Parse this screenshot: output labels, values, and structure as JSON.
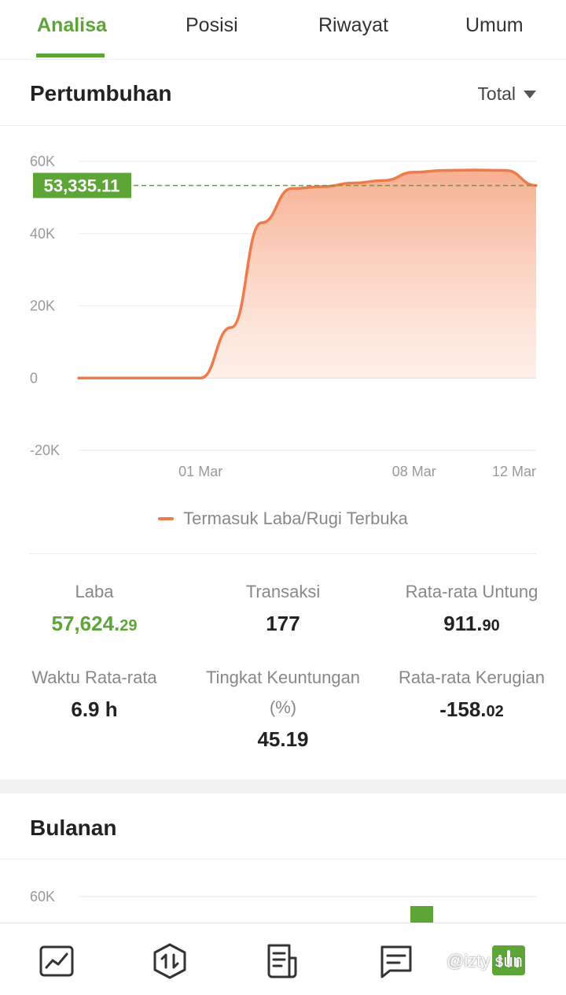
{
  "tabs": [
    {
      "label": "Analisa",
      "active": true
    },
    {
      "label": "Posisi",
      "active": false
    },
    {
      "label": "Riwayat",
      "active": false
    },
    {
      "label": "Umum",
      "active": false
    }
  ],
  "growth": {
    "title": "Pertumbuhan",
    "filter": "Total",
    "current_value_label": "53,335.11",
    "legend": "Termasuk Laba/Rugi Terbuka"
  },
  "chart_data": {
    "type": "area",
    "title": "",
    "xlabel": "",
    "ylabel": "",
    "x_tick_labels": [
      "01 Mar",
      "08 Mar",
      "12 Mar"
    ],
    "y_tick_labels": [
      "60K",
      "40K",
      "20K",
      "0",
      "-20K"
    ],
    "ylim": [
      -20000,
      60000
    ],
    "series": [
      {
        "name": "Termasuk Laba/Rugi Terbuka",
        "x": [
          "25 Feb",
          "27 Feb",
          "28 Feb",
          "01 Mar",
          "02 Mar",
          "03 Mar",
          "04 Mar",
          "05 Mar",
          "06 Mar",
          "07 Mar",
          "08 Mar",
          "09 Mar",
          "10 Mar",
          "11 Mar",
          "12 Mar"
        ],
        "values": [
          0,
          0,
          0,
          0,
          14000,
          43000,
          52500,
          53000,
          54000,
          54700,
          57000,
          57500,
          57600,
          57500,
          53335
        ]
      }
    ],
    "reference_line": 53335.11,
    "grid": true,
    "legend_position": "bottom",
    "colors": {
      "line": "#ef7a4a",
      "fill": "#f8b79a",
      "reference": "#5da537"
    }
  },
  "stats": {
    "laba": {
      "label": "Laba",
      "int": "57,624.",
      "dec": "29"
    },
    "transaksi": {
      "label": "Transaksi",
      "value": "177"
    },
    "rata_untung": {
      "label": "Rata-rata Untung",
      "int": "911.",
      "dec": "90"
    },
    "waktu": {
      "label": "Waktu Rata-rata",
      "value": "6.9 h"
    },
    "tingkat": {
      "label": "Tingkat Keuntungan",
      "unit": "(%)",
      "value": "45.19"
    },
    "rata_rugi": {
      "label": "Rata-rata Kerugian",
      "int": "-158.",
      "dec": "02"
    }
  },
  "monthly": {
    "title": "Bulanan",
    "y_tick_top": "60K"
  },
  "bottom_nav": [
    {
      "icon": "chart-line-icon"
    },
    {
      "icon": "trade-arrows-icon"
    },
    {
      "icon": "document-icon"
    },
    {
      "icon": "message-icon"
    },
    {
      "icon": "analysis-active-icon"
    }
  ],
  "watermark": "@izty sun",
  "colors": {
    "accent": "#5da537",
    "line": "#ef7a4a"
  }
}
